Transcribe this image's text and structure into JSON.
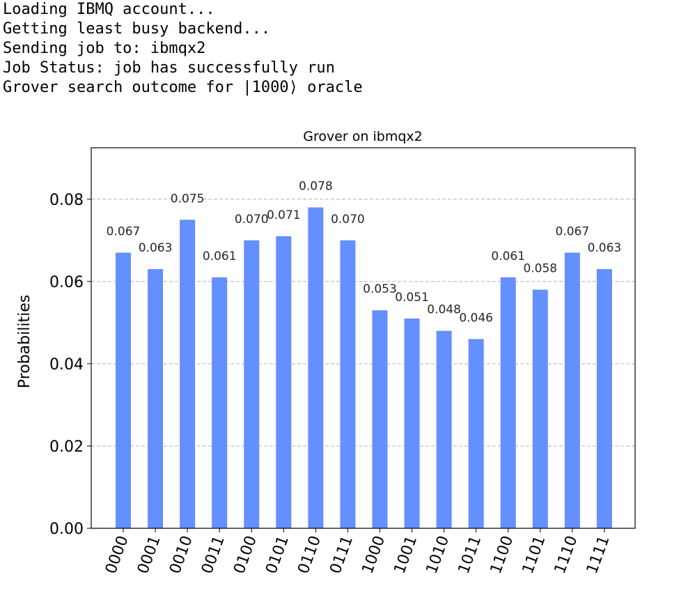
{
  "console": {
    "lines": [
      "Loading IBMQ account...",
      "Getting least busy backend...",
      "Sending job to: ibmqx2",
      "Job Status: job has successfully run",
      "Grover search outcome for |1000⟩ oracle"
    ]
  },
  "colors": {
    "bar": "#648FFF",
    "grid": "#b0b0b0",
    "axis": "#000000",
    "text": "#000000"
  },
  "chart_data": {
    "type": "bar",
    "title": "Grover on ibmqx2",
    "xlabel": "",
    "ylabel": "Probabilities",
    "ylim": [
      0,
      0.0925
    ],
    "grid": "horizontal dashed",
    "legend": "none",
    "categories": [
      "0000",
      "0001",
      "0010",
      "0011",
      "0100",
      "0101",
      "0110",
      "0111",
      "1000",
      "1001",
      "1010",
      "1011",
      "1100",
      "1101",
      "1110",
      "1111"
    ],
    "values": [
      0.067,
      0.063,
      0.075,
      0.061,
      0.07,
      0.071,
      0.078,
      0.07,
      0.053,
      0.051,
      0.048,
      0.046,
      0.061,
      0.058,
      0.067,
      0.063
    ],
    "value_labels": [
      "0.067",
      "0.063",
      "0.075",
      "0.061",
      "0.070",
      "0.071",
      "0.078",
      "0.070",
      "0.053",
      "0.051",
      "0.048",
      "0.046",
      "0.061",
      "0.058",
      "0.067",
      "0.063"
    ],
    "yticks": [
      0.0,
      0.02,
      0.04,
      0.06,
      0.08
    ],
    "ytick_labels": [
      "0.00",
      "0.02",
      "0.04",
      "0.06",
      "0.08"
    ]
  }
}
